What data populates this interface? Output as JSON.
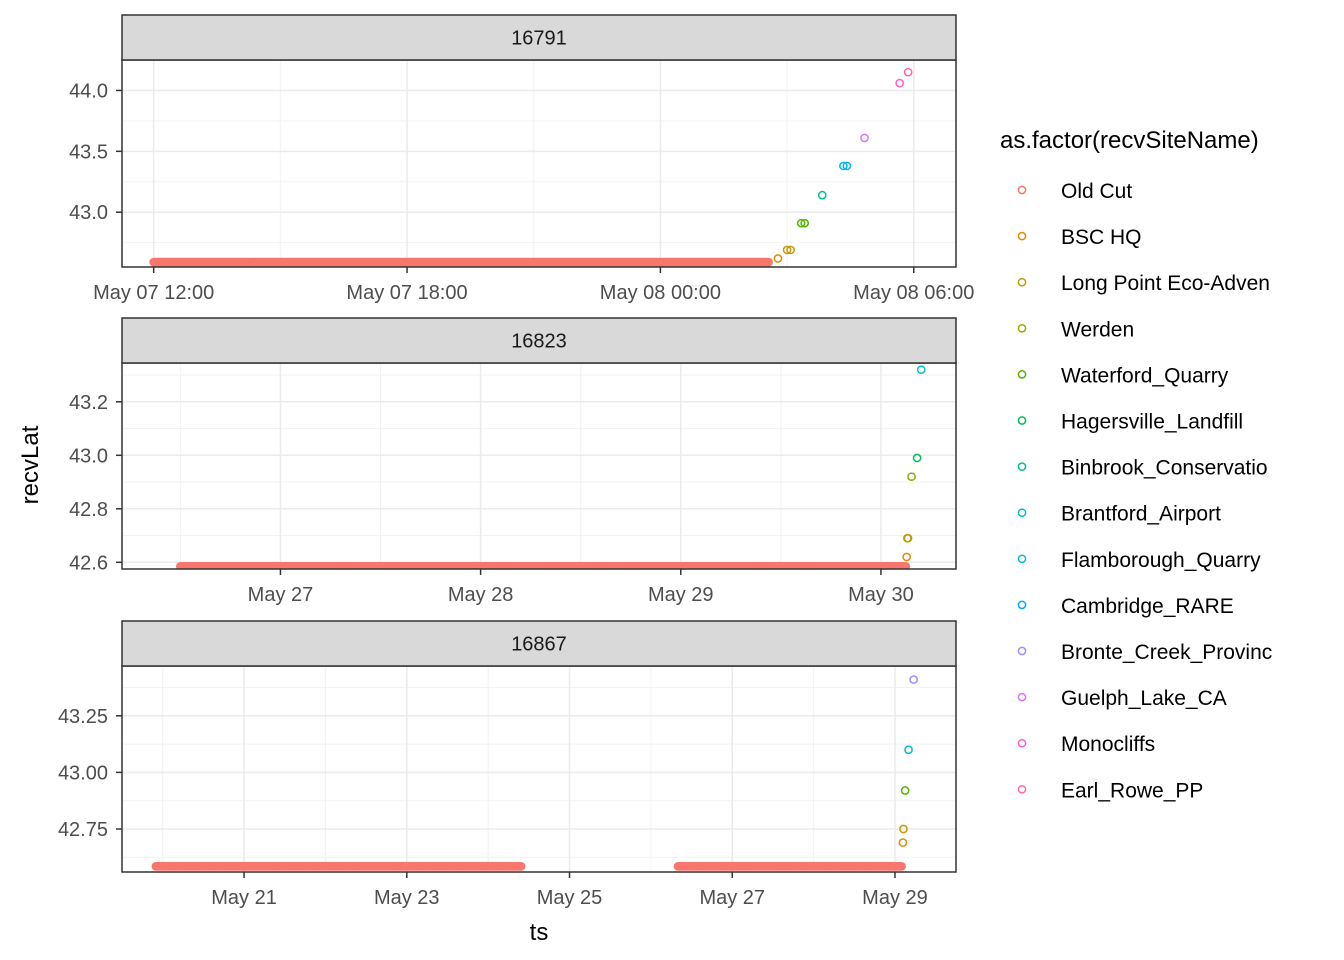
{
  "chart_data": {
    "type": "scatter",
    "xlabel": "ts",
    "ylabel": "recvLat",
    "legend": {
      "title": "as.factor(recvSiteName)",
      "position": "right",
      "entries": [
        {
          "name": "Old Cut",
          "color": "#F8766D"
        },
        {
          "name": "BSC HQ",
          "color": "#E38900"
        },
        {
          "name": "Long Point Eco-Adven",
          "color": "#C49A00"
        },
        {
          "name": "Werden",
          "color": "#99A800"
        },
        {
          "name": "Waterford_Quarry",
          "color": "#53B400"
        },
        {
          "name": "Hagersville_Landfill",
          "color": "#00BC56"
        },
        {
          "name": "Binbrook_Conservatio",
          "color": "#00C094"
        },
        {
          "name": "Brantford_Airport",
          "color": "#00BFC4"
        },
        {
          "name": "Flamborough_Quarry",
          "color": "#00B6EB"
        },
        {
          "name": "Cambridge_RARE",
          "color": "#06A4FF"
        },
        {
          "name": "Bronte_Creek_Provinc",
          "color": "#A58AFF"
        },
        {
          "name": "Guelph_Lake_CA",
          "color": "#DF70F8"
        },
        {
          "name": "Monocliffs",
          "color": "#FB61D7"
        },
        {
          "name": "Earl_Rowe_PP",
          "color": "#FF66A8"
        }
      ]
    },
    "grid": true,
    "panels": [
      {
        "strip": "16791",
        "xlim": [
          "2021-05-07 11:15",
          "2021-05-08 07:00"
        ],
        "ylim": [
          42.55,
          44.25
        ],
        "x_ticks": [
          {
            "value": "2021-05-07 12:00",
            "label": "May 07 12:00"
          },
          {
            "value": "2021-05-07 18:00",
            "label": "May 07 18:00"
          },
          {
            "value": "2021-05-08 00:00",
            "label": "May 08 00:00"
          },
          {
            "value": "2021-05-08 06:00",
            "label": "May 08 06:00"
          }
        ],
        "y_ticks": [
          {
            "value": 43.0,
            "label": "43.0"
          },
          {
            "value": 43.5,
            "label": "43.5"
          },
          {
            "value": 44.0,
            "label": "44.0"
          }
        ],
        "runs": [
          {
            "site": "Old Cut",
            "from": "2021-05-07 12:00",
            "to": "2021-05-08 02:35",
            "y": 42.59
          }
        ],
        "points": [
          {
            "site": "BSC HQ",
            "x": "2021-05-08 02:47",
            "y": 42.62
          },
          {
            "site": "Long Point Eco-Adven",
            "x": "2021-05-08 03:00",
            "y": 42.69
          },
          {
            "site": "Long Point Eco-Adven",
            "x": "2021-05-08 03:05",
            "y": 42.69
          },
          {
            "site": "Waterford_Quarry",
            "x": "2021-05-08 03:20",
            "y": 42.91
          },
          {
            "site": "Waterford_Quarry",
            "x": "2021-05-08 03:25",
            "y": 42.91
          },
          {
            "site": "Binbrook_Conservatio",
            "x": "2021-05-08 03:50",
            "y": 43.14
          },
          {
            "site": "Flamborough_Quarry",
            "x": "2021-05-08 04:20",
            "y": 43.38
          },
          {
            "site": "Flamborough_Quarry",
            "x": "2021-05-08 04:25",
            "y": 43.38
          },
          {
            "site": "Guelph_Lake_CA",
            "x": "2021-05-08 04:50",
            "y": 43.61
          },
          {
            "site": "Monocliffs",
            "x": "2021-05-08 05:40",
            "y": 44.06
          },
          {
            "site": "Earl_Rowe_PP",
            "x": "2021-05-08 05:52",
            "y": 44.15
          }
        ]
      },
      {
        "strip": "16823",
        "xlim": [
          "2021-05-26 05:00",
          "2021-05-30 09:00"
        ],
        "ylim": [
          42.575,
          43.345
        ],
        "x_ticks": [
          {
            "value": "2021-05-27 00:00",
            "label": "May 27"
          },
          {
            "value": "2021-05-28 00:00",
            "label": "May 28"
          },
          {
            "value": "2021-05-29 00:00",
            "label": "May 29"
          },
          {
            "value": "2021-05-30 00:00",
            "label": "May 30"
          }
        ],
        "y_ticks": [
          {
            "value": 42.6,
            "label": "42.6"
          },
          {
            "value": 42.8,
            "label": "42.8"
          },
          {
            "value": 43.0,
            "label": "43.0"
          },
          {
            "value": 43.2,
            "label": "43.2"
          }
        ],
        "runs": [
          {
            "site": "Old Cut",
            "from": "2021-05-26 12:00",
            "to": "2021-05-30 03:00",
            "y": 42.585
          }
        ],
        "points": [
          {
            "site": "BSC HQ",
            "x": "2021-05-30 03:05",
            "y": 42.62
          },
          {
            "site": "Long Point Eco-Adven",
            "x": "2021-05-30 03:10",
            "y": 42.69
          },
          {
            "site": "Long Point Eco-Adven",
            "x": "2021-05-30 03:15",
            "y": 42.69
          },
          {
            "site": "Werden",
            "x": "2021-05-30 03:40",
            "y": 42.92
          },
          {
            "site": "Hagersville_Landfill",
            "x": "2021-05-30 04:20",
            "y": 42.99
          },
          {
            "site": "Brantford_Airport",
            "x": "2021-05-30 04:50",
            "y": 43.32
          }
        ]
      },
      {
        "strip": "16867",
        "xlim": [
          "2021-05-19 12:00",
          "2021-05-29 18:00"
        ],
        "ylim": [
          42.56,
          43.47
        ],
        "x_ticks": [
          {
            "value": "2021-05-21 00:00",
            "label": "May 21"
          },
          {
            "value": "2021-05-23 00:00",
            "label": "May 23"
          },
          {
            "value": "2021-05-25 00:00",
            "label": "May 25"
          },
          {
            "value": "2021-05-27 00:00",
            "label": "May 27"
          },
          {
            "value": "2021-05-29 00:00",
            "label": "May 29"
          }
        ],
        "y_ticks": [
          {
            "value": 42.75,
            "label": "42.75"
          },
          {
            "value": 43.0,
            "label": "43.00"
          },
          {
            "value": 43.25,
            "label": "43.25"
          }
        ],
        "runs": [
          {
            "site": "Old Cut",
            "from": "2021-05-19 22:00",
            "to": "2021-05-24 10:00",
            "y": 42.585
          },
          {
            "site": "Old Cut",
            "from": "2021-05-26 08:00",
            "to": "2021-05-29 02:00",
            "y": 42.585
          }
        ],
        "points": [
          {
            "site": "BSC HQ",
            "x": "2021-05-29 02:20",
            "y": 42.69
          },
          {
            "site": "Long Point Eco-Adven",
            "x": "2021-05-29 02:30",
            "y": 42.75
          },
          {
            "site": "Waterford_Quarry",
            "x": "2021-05-29 03:00",
            "y": 42.92
          },
          {
            "site": "Brantford_Airport",
            "x": "2021-05-29 04:00",
            "y": 43.1
          },
          {
            "site": "Bronte_Creek_Provinc",
            "x": "2021-05-29 05:30",
            "y": 43.41
          }
        ]
      }
    ]
  }
}
